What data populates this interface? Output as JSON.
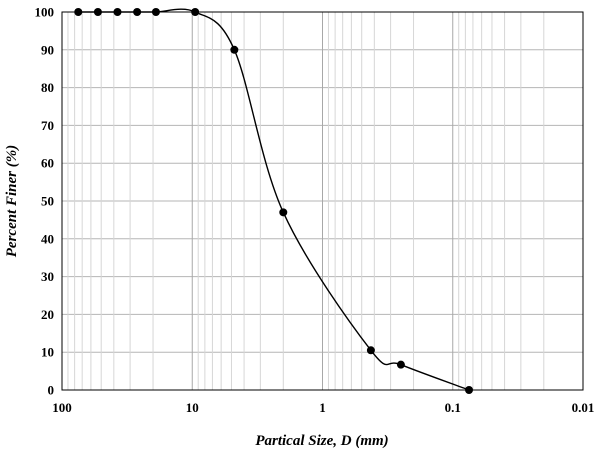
{
  "chart_data": {
    "type": "line",
    "title": "",
    "xlabel": "Partical Size, D (mm)",
    "ylabel": "Percent Finer (%)",
    "x_scale": "log",
    "x_reversed": true,
    "xlim": [
      100,
      0.01
    ],
    "ylim": [
      0,
      100
    ],
    "x_ticks": [
      100,
      10,
      1,
      0.1,
      0.01
    ],
    "x_tick_labels": [
      "100",
      "10",
      "1",
      "0.1",
      "0.01"
    ],
    "y_ticks": [
      0,
      10,
      20,
      30,
      40,
      50,
      60,
      70,
      80,
      90,
      100
    ],
    "y_tick_labels": [
      "0",
      "10",
      "20",
      "30",
      "40",
      "50",
      "60",
      "70",
      "80",
      "90",
      "100"
    ],
    "grid": true,
    "legend": "none",
    "series": [
      {
        "x": [
          75,
          53,
          37.5,
          26.5,
          19,
          9.5,
          4.75,
          2.0,
          0.425,
          0.25,
          0.075
        ],
        "y": [
          100,
          100,
          100,
          100,
          100,
          100,
          90,
          47,
          10.5,
          6.7,
          0
        ],
        "color": "#000000"
      }
    ]
  }
}
